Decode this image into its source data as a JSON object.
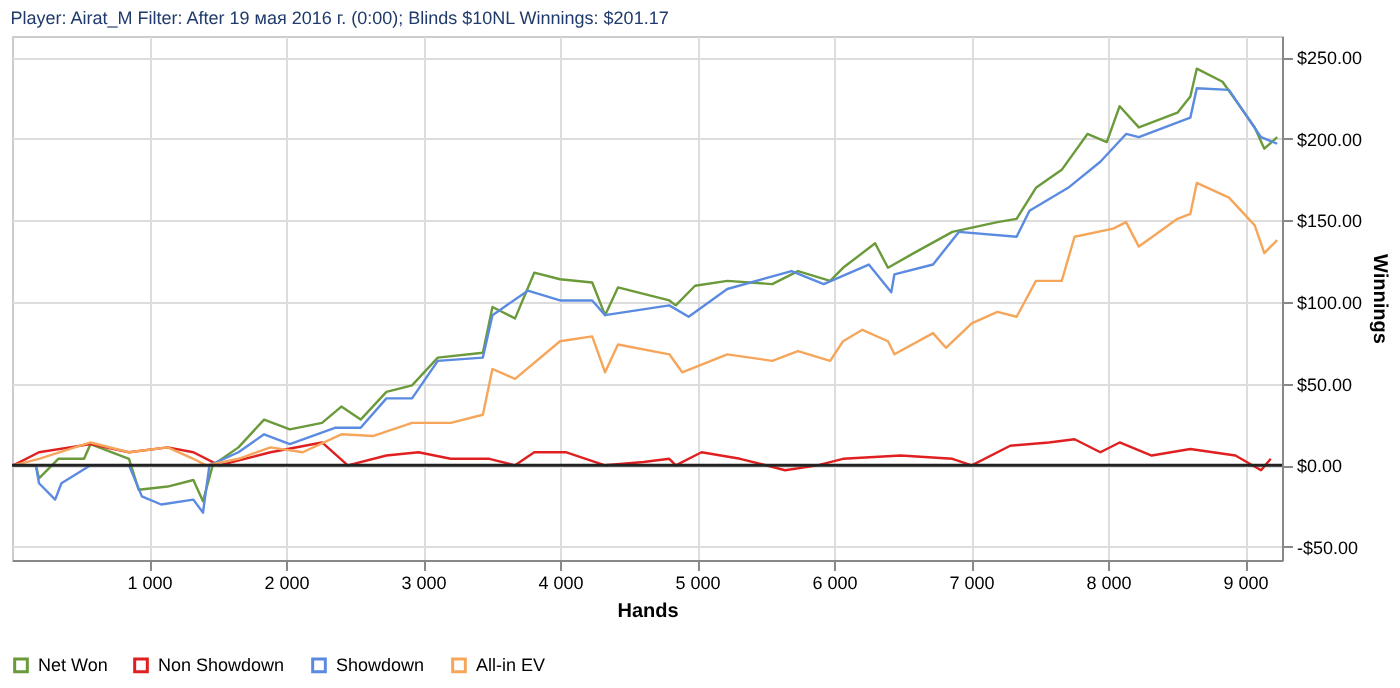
{
  "chart_data": {
    "type": "line",
    "title": "Player: Airat_M Filter: After 19 мая 2016 г. (0:00); Blinds $10NL Winnings: $201.17",
    "xlabel": "Hands",
    "ylabel": "Winnings",
    "xlim": [
      0,
      9270
    ],
    "ylim": [
      -58,
      263
    ],
    "xticks": [
      {
        "value": 1000,
        "label": "1 000"
      },
      {
        "value": 2000,
        "label": "2 000"
      },
      {
        "value": 3000,
        "label": "3 000"
      },
      {
        "value": 4000,
        "label": "4 000"
      },
      {
        "value": 5000,
        "label": "5 000"
      },
      {
        "value": 6000,
        "label": "6 000"
      },
      {
        "value": 7000,
        "label": "7 000"
      },
      {
        "value": 8000,
        "label": "8 000"
      },
      {
        "value": 9000,
        "label": "9 000"
      }
    ],
    "yticks": [
      {
        "value": -50,
        "label": "-$50.00"
      },
      {
        "value": 0,
        "label": "$0.00"
      },
      {
        "value": 50,
        "label": "$50.00"
      },
      {
        "value": 100,
        "label": "$100.00"
      },
      {
        "value": 150,
        "label": "$150.00"
      },
      {
        "value": 200,
        "label": "$200.00"
      },
      {
        "value": 250,
        "label": "$250.00"
      }
    ],
    "grid": true,
    "legend": "bottom",
    "line_style": "solid",
    "ref_lines": [
      {
        "axis": "y",
        "value": 0,
        "label": null,
        "color": "#222222"
      }
    ],
    "series": [
      {
        "name": "Net Won",
        "color": "#6a9a3a",
        "x": [
          10,
          174,
          197,
          338,
          526,
          573,
          854,
          925,
          1136,
          1324,
          1394,
          1465,
          1653,
          1840,
          2028,
          2263,
          2404,
          2545,
          2733,
          2920,
          3108,
          3437,
          3507,
          3672,
          3812,
          4000,
          4235,
          4329,
          4423,
          4798,
          4845,
          4986,
          5221,
          5549,
          5737,
          5972,
          6066,
          6300,
          6394,
          6582,
          6864,
          7193,
          7333,
          7474,
          7662,
          7850,
          7991,
          8085,
          8225,
          8507,
          8601,
          8648,
          8836,
          9071,
          9141,
          9235
        ],
        "values": [
          0,
          0,
          -8,
          4,
          4,
          13,
          4,
          -15,
          -13,
          -9,
          -22,
          0,
          11,
          28,
          22,
          26,
          36,
          28,
          45,
          49,
          66,
          69,
          97,
          90,
          118,
          114,
          112,
          92,
          109,
          101,
          98,
          110,
          113,
          111,
          119,
          113,
          121,
          136,
          121,
          130,
          143,
          149,
          151,
          170,
          181,
          203,
          198,
          220,
          207,
          216,
          226,
          243,
          235,
          207,
          194,
          201
        ]
      },
      {
        "name": "Non Showdown",
        "color": "#e02020",
        "x": [
          10,
          197,
          573,
          854,
          1136,
          1324,
          1512,
          1887,
          2263,
          2451,
          2733,
          2967,
          3202,
          3484,
          3672,
          3812,
          4047,
          4329,
          4610,
          4798,
          4845,
          5033,
          5315,
          5643,
          5878,
          6066,
          6488,
          6864,
          7005,
          7286,
          7568,
          7756,
          7944,
          8085,
          8319,
          8601,
          8930,
          9117,
          9188
        ],
        "values": [
          0,
          8,
          13,
          8,
          11,
          8,
          0,
          8,
          14,
          0,
          6,
          8,
          4,
          4,
          0,
          8,
          8,
          0,
          2,
          4,
          0,
          8,
          4,
          -3,
          0,
          4,
          6,
          4,
          0,
          12,
          14,
          16,
          8,
          14,
          6,
          10,
          6,
          -3,
          4
        ]
      },
      {
        "name": "Showdown",
        "color": "#5b8be0",
        "x": [
          10,
          174,
          197,
          315,
          361,
          573,
          854,
          948,
          1089,
          1324,
          1394,
          1441,
          1653,
          1840,
          2028,
          2357,
          2545,
          2733,
          2920,
          3108,
          3437,
          3507,
          3765,
          4000,
          4235,
          4329,
          4798,
          4939,
          5221,
          5690,
          5925,
          6254,
          6418,
          6441,
          6723,
          6911,
          7333,
          7427,
          7709,
          7944,
          8132,
          8225,
          8601,
          8648,
          8883,
          9117,
          9235
        ],
        "values": [
          0,
          0,
          -11,
          -21,
          -11,
          0,
          0,
          -19,
          -24,
          -21,
          -29,
          0,
          8,
          19,
          13,
          23,
          23,
          41,
          41,
          64,
          66,
          92,
          107,
          101,
          101,
          92,
          98,
          91,
          108,
          119,
          111,
          123,
          106,
          117,
          123,
          143,
          140,
          156,
          170,
          186,
          203,
          201,
          213,
          231,
          230,
          201,
          197
        ]
      },
      {
        "name": "All-in EV",
        "color": "#f5a65b",
        "x": [
          10,
          197,
          573,
          854,
          1136,
          1324,
          1418,
          1653,
          1887,
          2122,
          2404,
          2639,
          2920,
          3202,
          3437,
          3507,
          3672,
          4000,
          4235,
          4329,
          4423,
          4798,
          4892,
          5221,
          5549,
          5737,
          5972,
          6066,
          6207,
          6394,
          6441,
          6723,
          6817,
          7005,
          7193,
          7333,
          7474,
          7662,
          7756,
          8038,
          8132,
          8225,
          8507,
          8601,
          8648,
          8883,
          9071,
          9141,
          9235
        ],
        "values": [
          0,
          4,
          14,
          8,
          11,
          4,
          0,
          4,
          11,
          8,
          19,
          18,
          26,
          26,
          31,
          59,
          53,
          76,
          79,
          57,
          74,
          68,
          57,
          68,
          64,
          70,
          64,
          76,
          83,
          76,
          68,
          81,
          72,
          87,
          94,
          91,
          113,
          113,
          140,
          145,
          149,
          134,
          151,
          154,
          173,
          164,
          147,
          130,
          138
        ]
      }
    ]
  }
}
